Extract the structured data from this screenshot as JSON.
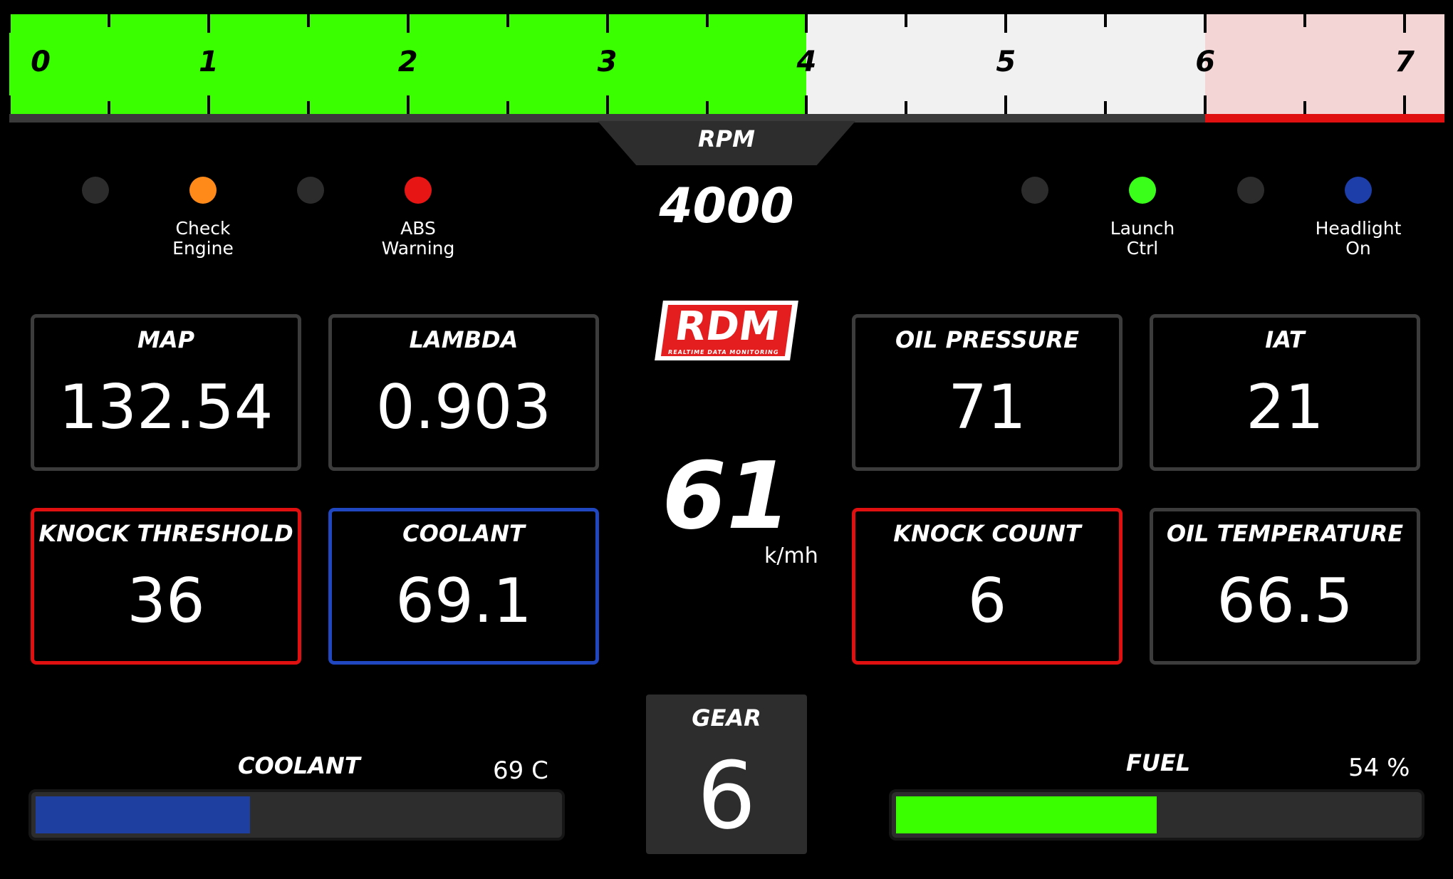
{
  "rpm": {
    "label": "RPM",
    "value_text": "4000",
    "value": 4000,
    "max": 7.2,
    "redline_start": 6.0,
    "ticks": [
      "0",
      "1",
      "2",
      "3",
      "4",
      "5",
      "6",
      "7"
    ],
    "colors": {
      "active": "#39ff00",
      "inactive": "#f1f1f1",
      "redzone": "#f3d5d5",
      "redline": "#e01010"
    }
  },
  "indicators": {
    "left": [
      {
        "label": "",
        "state": "off",
        "color": "#2c2c2c"
      },
      {
        "label": "Check\nEngine",
        "state": "on",
        "color": "#ff8a1a"
      },
      {
        "label": "",
        "state": "off",
        "color": "#2c2c2c"
      },
      {
        "label": "ABS\nWarning",
        "state": "on",
        "color": "#e81515"
      }
    ],
    "right": [
      {
        "label": "",
        "state": "off",
        "color": "#2c2c2c"
      },
      {
        "label": "Launch\nCtrl",
        "state": "on",
        "color": "#39ff1a"
      },
      {
        "label": "",
        "state": "off",
        "color": "#2c2c2c"
      },
      {
        "label": "Headlight\nOn",
        "state": "on",
        "color": "#1d3ea8"
      }
    ]
  },
  "boxes": {
    "map": {
      "title": "MAP",
      "value": "132.54",
      "border": "#3c3c3c"
    },
    "lambda": {
      "title": "LAMBDA",
      "value": "0.903",
      "border": "#3c3c3c"
    },
    "oil_pressure": {
      "title": "OIL PRESSURE",
      "value": "71",
      "border": "#3c3c3c"
    },
    "iat": {
      "title": "IAT",
      "value": "21",
      "border": "#3c3c3c"
    },
    "knock_threshold": {
      "title": "KNOCK THRESHOLD",
      "value": "36",
      "border": "#e01010"
    },
    "coolant": {
      "title": "COOLANT",
      "value": "69.1",
      "border": "#2046c0"
    },
    "knock_count": {
      "title": "KNOCK COUNT",
      "value": "6",
      "border": "#e01010"
    },
    "oil_temperature": {
      "title": "OIL TEMPERATURE",
      "value": "66.5",
      "border": "#3c3c3c"
    }
  },
  "logo": {
    "text": "RDM",
    "subtitle": "REALTIME DATA MONITORING"
  },
  "speed": {
    "value": "61",
    "unit": "k/mh"
  },
  "gear": {
    "label": "GEAR",
    "value": "6"
  },
  "gauges": {
    "coolant": {
      "title": "COOLANT",
      "value_text": "69 C",
      "fraction": 0.41,
      "color": "#1e3ea0"
    },
    "fuel": {
      "title": "FUEL",
      "value_text": "54 %",
      "fraction": 0.5,
      "color": "#39ff00"
    }
  }
}
